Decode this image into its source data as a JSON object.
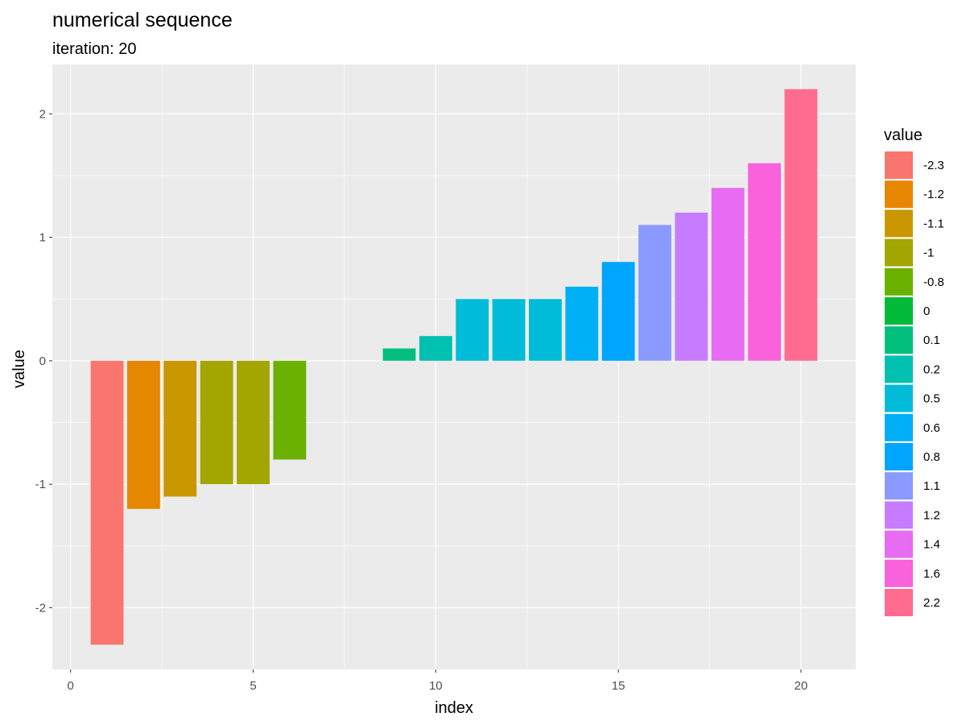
{
  "chart_data": {
    "type": "bar",
    "title": "numerical sequence",
    "subtitle": "iteration: 20",
    "xlabel": "index",
    "ylabel": "value",
    "xlim": [
      -0.5,
      21.5
    ],
    "ylim": [
      -2.5,
      2.4
    ],
    "x_ticks": [
      0,
      5,
      10,
      15,
      20
    ],
    "y_ticks": [
      -2,
      -1,
      0,
      1,
      2
    ],
    "grid": true,
    "legend_position": "right",
    "legend_title": "value",
    "x": [
      1,
      2,
      3,
      4,
      5,
      6,
      7,
      8,
      9,
      10,
      11,
      12,
      13,
      14,
      15,
      16,
      17,
      18,
      19,
      20
    ],
    "values": [
      -2.3,
      -1.2,
      -1.1,
      -1,
      -1,
      -0.8,
      0,
      0,
      0.1,
      0.2,
      0.5,
      0.5,
      0.5,
      0.6,
      0.8,
      1.1,
      1.2,
      1.4,
      1.6,
      2.2
    ],
    "legend": [
      {
        "label": "-2.3",
        "color": "#F8766D"
      },
      {
        "label": "-1.2",
        "color": "#E58700"
      },
      {
        "label": "-1.1",
        "color": "#C99800"
      },
      {
        "label": "-1",
        "color": "#A3A500"
      },
      {
        "label": "-0.8",
        "color": "#6BB100"
      },
      {
        "label": "0",
        "color": "#00BA38"
      },
      {
        "label": "0.1",
        "color": "#00BF7D"
      },
      {
        "label": "0.2",
        "color": "#00C0AF"
      },
      {
        "label": "0.5",
        "color": "#00BCD8"
      },
      {
        "label": "0.6",
        "color": "#00B0F6"
      },
      {
        "label": "0.8",
        "color": "#00A5FF"
      },
      {
        "label": "1.1",
        "color": "#8A9AFF"
      },
      {
        "label": "1.2",
        "color": "#C77CFF"
      },
      {
        "label": "1.4",
        "color": "#E76BF3"
      },
      {
        "label": "1.6",
        "color": "#FA62DB"
      },
      {
        "label": "2.2",
        "color": "#FF6C90"
      }
    ],
    "colors": {
      "panel_background": "#EBEBEB",
      "grid_major": "#FFFFFF",
      "tick_label": "#4D4D4D"
    }
  }
}
